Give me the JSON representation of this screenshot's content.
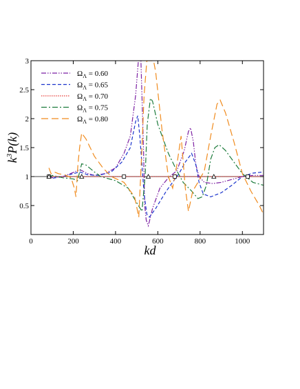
{
  "chart_data": {
    "type": "line",
    "xlabel": "kd",
    "ylabel": "k",
    "ylabel_sup": "3",
    "ylabel_rest": "P(k)",
    "xlim": [
      0,
      1100
    ],
    "ylim": [
      0,
      3
    ],
    "xticks": [
      0,
      200,
      400,
      600,
      800,
      1000
    ],
    "yticks": [
      0.5,
      1,
      1.5,
      2,
      2.5,
      3
    ],
    "ytick_labels": [
      "0.5",
      "1",
      "1.5",
      "2",
      "2.5",
      "3"
    ],
    "reference_line": 1,
    "grid": false,
    "legend_position": "top-left",
    "legend_symbol": "Ω",
    "legend_subscript": "Λ",
    "series": [
      {
        "name": "0.60",
        "label": "= 0.60",
        "color": "#7b1fa2",
        "dash": "7,2,1.5,2,1.5,2",
        "points": [
          [
            85,
            1.02
          ],
          [
            100,
            0.98
          ],
          [
            150,
            1.0
          ],
          [
            200,
            1.07
          ],
          [
            230,
            1.12
          ],
          [
            270,
            1.05
          ],
          [
            300,
            1.02
          ],
          [
            350,
            1.05
          ],
          [
            400,
            1.15
          ],
          [
            440,
            1.4
          ],
          [
            470,
            1.7
          ],
          [
            495,
            2.4
          ],
          [
            508,
            3.0
          ],
          [
            520,
            3.0
          ],
          [
            525,
            2.4
          ],
          [
            532,
            1.5
          ],
          [
            538,
            0.5
          ],
          [
            545,
            0.25
          ],
          [
            555,
            0.15
          ],
          [
            575,
            0.45
          ],
          [
            610,
            0.8
          ],
          [
            650,
            0.98
          ],
          [
            690,
            1.1
          ],
          [
            725,
            1.45
          ],
          [
            745,
            1.78
          ],
          [
            755,
            1.84
          ],
          [
            768,
            1.6
          ],
          [
            780,
            1.2
          ],
          [
            795,
            1.0
          ],
          [
            820,
            0.9
          ],
          [
            860,
            0.88
          ],
          [
            900,
            0.9
          ],
          [
            950,
            0.95
          ],
          [
            1000,
            1.0
          ],
          [
            1050,
            1.02
          ],
          [
            1100,
            1.02
          ]
        ]
      },
      {
        "name": "0.65",
        "label": "= 0.65",
        "color": "#1a33cc",
        "dash": "5,3",
        "points": [
          [
            85,
            1.03
          ],
          [
            100,
            0.97
          ],
          [
            150,
            1.0
          ],
          [
            200,
            1.05
          ],
          [
            230,
            1.08
          ],
          [
            270,
            1.03
          ],
          [
            320,
            1.02
          ],
          [
            380,
            1.08
          ],
          [
            430,
            1.25
          ],
          [
            470,
            1.5
          ],
          [
            495,
            1.95
          ],
          [
            505,
            2.05
          ],
          [
            515,
            1.7
          ],
          [
            525,
            1.2
          ],
          [
            535,
            0.7
          ],
          [
            548,
            0.35
          ],
          [
            560,
            0.3
          ],
          [
            590,
            0.45
          ],
          [
            640,
            0.75
          ],
          [
            680,
            0.95
          ],
          [
            700,
            1.05
          ],
          [
            730,
            1.25
          ],
          [
            760,
            1.4
          ],
          [
            780,
            1.2
          ],
          [
            795,
            0.9
          ],
          [
            815,
            0.7
          ],
          [
            850,
            0.65
          ],
          [
            900,
            0.72
          ],
          [
            950,
            0.85
          ],
          [
            1000,
            1.0
          ],
          [
            1050,
            1.06
          ],
          [
            1100,
            1.08
          ]
        ]
      },
      {
        "name": "0.70",
        "label": "= 0.70",
        "color": "#e53935",
        "dash": "1.5,1.5",
        "points": [
          [
            80,
            1.0
          ],
          [
            1100,
            1.0
          ]
        ]
      },
      {
        "name": "0.75",
        "label": "= 0.75",
        "color": "#1b7a3a",
        "dash": "8,3,2,3",
        "points": [
          [
            85,
            0.97
          ],
          [
            100,
            1.02
          ],
          [
            150,
            0.98
          ],
          [
            200,
            0.96
          ],
          [
            220,
            0.93
          ],
          [
            240,
            1.22
          ],
          [
            260,
            1.2
          ],
          [
            300,
            1.08
          ],
          [
            330,
            1.0
          ],
          [
            400,
            0.93
          ],
          [
            460,
            0.8
          ],
          [
            500,
            0.55
          ],
          [
            525,
            0.4
          ],
          [
            540,
            1.0
          ],
          [
            550,
            1.9
          ],
          [
            565,
            2.35
          ],
          [
            575,
            2.3
          ],
          [
            600,
            1.9
          ],
          [
            650,
            1.4
          ],
          [
            690,
            1.1
          ],
          [
            720,
            0.9
          ],
          [
            760,
            0.75
          ],
          [
            790,
            0.62
          ],
          [
            810,
            0.65
          ],
          [
            830,
            0.85
          ],
          [
            850,
            1.3
          ],
          [
            870,
            1.5
          ],
          [
            890,
            1.55
          ],
          [
            920,
            1.45
          ],
          [
            960,
            1.25
          ],
          [
            1000,
            1.05
          ],
          [
            1050,
            0.9
          ],
          [
            1100,
            0.85
          ]
        ]
      },
      {
        "name": "0.80",
        "label": "= 0.80",
        "color": "#f08a1c",
        "dash": "10,5",
        "points": [
          [
            85,
            1.15
          ],
          [
            95,
            1.05
          ],
          [
            110,
            1.08
          ],
          [
            130,
            1.05
          ],
          [
            160,
            1.03
          ],
          [
            190,
            0.98
          ],
          [
            205,
            0.8
          ],
          [
            213,
            0.65
          ],
          [
            222,
            1.2
          ],
          [
            230,
            1.5
          ],
          [
            240,
            1.75
          ],
          [
            260,
            1.65
          ],
          [
            300,
            1.35
          ],
          [
            340,
            1.15
          ],
          [
            380,
            1.0
          ],
          [
            440,
            0.9
          ],
          [
            490,
            0.65
          ],
          [
            510,
            0.3
          ],
          [
            525,
            1.5
          ],
          [
            535,
            2.4
          ],
          [
            548,
            3.0
          ],
          [
            565,
            3.0
          ],
          [
            580,
            3.0
          ],
          [
            590,
            2.8
          ],
          [
            620,
            1.8
          ],
          [
            650,
            1.0
          ],
          [
            670,
            0.8
          ],
          [
            690,
            1.2
          ],
          [
            710,
            1.7
          ],
          [
            730,
            0.8
          ],
          [
            745,
            0.4
          ],
          [
            765,
            0.75
          ],
          [
            790,
            0.9
          ],
          [
            820,
            1.1
          ],
          [
            850,
            1.7
          ],
          [
            880,
            2.25
          ],
          [
            895,
            2.32
          ],
          [
            920,
            2.1
          ],
          [
            960,
            1.6
          ],
          [
            1000,
            1.05
          ],
          [
            1040,
            0.75
          ],
          [
            1080,
            0.5
          ],
          [
            1100,
            0.35
          ]
        ]
      }
    ],
    "markers": {
      "squares": [
        [
          85,
          1.0
        ],
        [
          440,
          1.0
        ],
        [
          680,
          1.0
        ],
        [
          1025,
          1.0
        ]
      ],
      "triangles": [
        [
          85,
          1.0
        ],
        [
          240,
          1.0
        ],
        [
          555,
          1.0
        ],
        [
          865,
          1.0
        ]
      ]
    }
  }
}
